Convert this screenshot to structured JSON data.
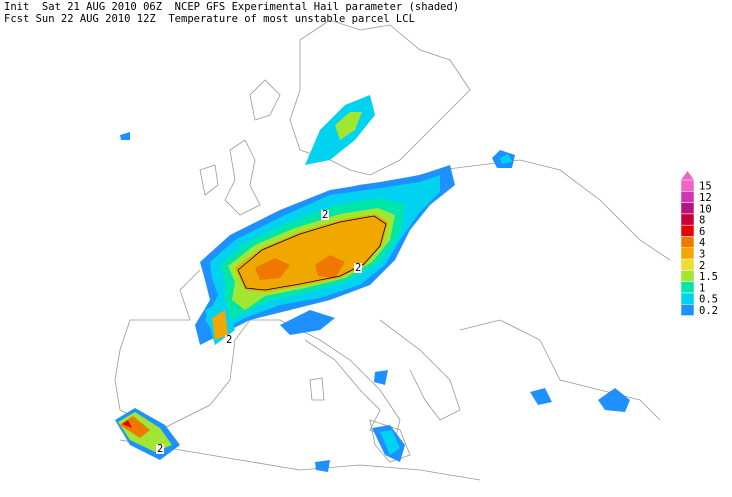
{
  "header": {
    "line1": "Init  Sat 21 AUG 2010 06Z  NCEP GFS Experimental Hail parameter (shaded)",
    "line2": "Fcst Sun 22 AUG 2010 12Z  Temperature of most unstable parcel LCL"
  },
  "legend": {
    "items": [
      {
        "label": "15",
        "color": "#f064c8"
      },
      {
        "label": "12",
        "color": "#d232b4"
      },
      {
        "label": "10",
        "color": "#b4147d"
      },
      {
        "label": "8",
        "color": "#c8003c"
      },
      {
        "label": "6",
        "color": "#e60000"
      },
      {
        "label": "4",
        "color": "#f07800"
      },
      {
        "label": "3",
        "color": "#f0a800"
      },
      {
        "label": "2",
        "color": "#f0dc32"
      },
      {
        "label": "1.5",
        "color": "#a0e632"
      },
      {
        "label": "1",
        "color": "#00e6aa"
      },
      {
        "label": "0.5",
        "color": "#00d2f0"
      },
      {
        "label": "0.2",
        "color": "#1e90ff"
      }
    ]
  },
  "map": {
    "contour_labels": [
      "2",
      "2",
      "2",
      "2"
    ]
  }
}
